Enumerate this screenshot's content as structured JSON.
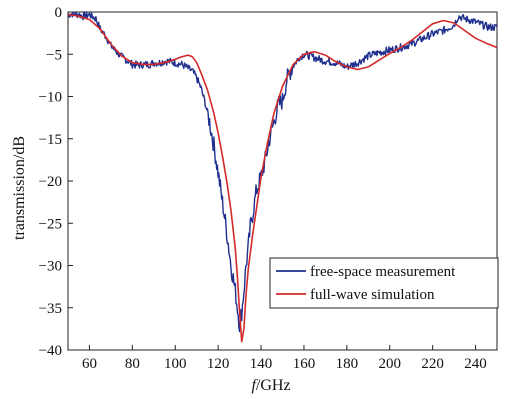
{
  "chart_data": {
    "type": "line",
    "xlabel": "f/GHz",
    "xlabel_italic_part": "f",
    "xlabel_rest": "/GHz",
    "ylabel": "transmission/dB",
    "xlim": [
      50,
      250
    ],
    "ylim": [
      -40,
      0
    ],
    "xticks": [
      60,
      80,
      100,
      120,
      140,
      160,
      180,
      200,
      220,
      240
    ],
    "yticks": [
      0,
      -5,
      -10,
      -15,
      -20,
      -25,
      -30,
      -35,
      -40
    ],
    "grid": false,
    "legend_position": "lower-right",
    "series": [
      {
        "name": "free-space measurement",
        "color": "#1f2f8f",
        "noisy": true,
        "x": [
          50,
          52,
          55,
          57,
          60,
          63,
          65,
          68,
          70,
          73,
          75,
          78,
          80,
          83,
          85,
          88,
          90,
          93,
          95,
          98,
          100,
          103,
          105,
          108,
          110,
          112,
          114,
          116,
          118,
          120,
          122,
          124,
          126,
          127,
          128,
          129,
          130,
          131,
          132,
          133,
          134,
          135,
          136,
          138,
          140,
          142,
          144,
          146,
          148,
          150,
          152,
          154,
          156,
          158,
          160,
          163,
          166,
          170,
          175,
          180,
          185,
          190,
          195,
          200,
          205,
          210,
          215,
          220,
          225,
          228,
          230,
          232,
          235,
          238,
          240,
          243,
          246,
          250
        ],
        "values": [
          -0.3,
          -0.2,
          -0.3,
          -0.5,
          -0.3,
          -0.8,
          -2.0,
          -3.0,
          -4.0,
          -4.8,
          -5.3,
          -5.8,
          -6.2,
          -6.3,
          -6.2,
          -6.2,
          -6.0,
          -6.0,
          -5.8,
          -5.9,
          -6.0,
          -6.2,
          -6.5,
          -7.0,
          -7.8,
          -9.0,
          -10.8,
          -13.0,
          -15.8,
          -19.0,
          -22.5,
          -26.0,
          -30.0,
          -31.5,
          -33.0,
          -35.0,
          -37.0,
          -35.5,
          -33.0,
          -30.0,
          -28.0,
          -25.5,
          -24.0,
          -21.0,
          -19.5,
          -17.5,
          -15.0,
          -13.0,
          -11.0,
          -10.5,
          -8.0,
          -6.8,
          -6.0,
          -5.3,
          -5.0,
          -5.2,
          -5.5,
          -5.8,
          -6.0,
          -6.5,
          -6.0,
          -5.2,
          -4.8,
          -4.5,
          -4.2,
          -3.8,
          -3.2,
          -2.6,
          -2.2,
          -1.8,
          -1.5,
          -0.5,
          -0.8,
          -1.0,
          -1.2,
          -1.5,
          -1.8,
          -1.8
        ]
      },
      {
        "name": "full-wave simulation",
        "color": "#d42a2a",
        "noisy": false,
        "x": [
          50,
          55,
          60,
          65,
          70,
          75,
          80,
          85,
          90,
          95,
          100,
          103,
          106,
          108,
          110,
          112,
          115,
          118,
          120,
          122,
          124,
          126,
          128,
          129,
          130,
          131,
          132,
          133,
          134,
          136,
          138,
          140,
          143,
          146,
          150,
          155,
          160,
          165,
          170,
          175,
          180,
          185,
          190,
          195,
          200,
          205,
          210,
          215,
          220,
          225,
          230,
          235,
          240,
          245,
          250
        ],
        "values": [
          -0.3,
          -0.5,
          -0.9,
          -2.0,
          -3.8,
          -5.2,
          -6.0,
          -6.2,
          -6.2,
          -6.0,
          -5.6,
          -5.3,
          -5.1,
          -5.3,
          -6.0,
          -7.2,
          -9.2,
          -12.0,
          -14.3,
          -17.0,
          -20.0,
          -23.5,
          -28.0,
          -31.5,
          -35.5,
          -39.0,
          -37.5,
          -33.5,
          -30.5,
          -26.5,
          -23.0,
          -19.5,
          -15.5,
          -12.0,
          -8.8,
          -6.2,
          -5.0,
          -4.7,
          -5.1,
          -5.9,
          -6.5,
          -6.8,
          -6.5,
          -5.7,
          -4.9,
          -4.2,
          -3.4,
          -2.4,
          -1.4,
          -1.0,
          -1.3,
          -2.2,
          -3.1,
          -3.7,
          -4.2
        ]
      }
    ]
  }
}
